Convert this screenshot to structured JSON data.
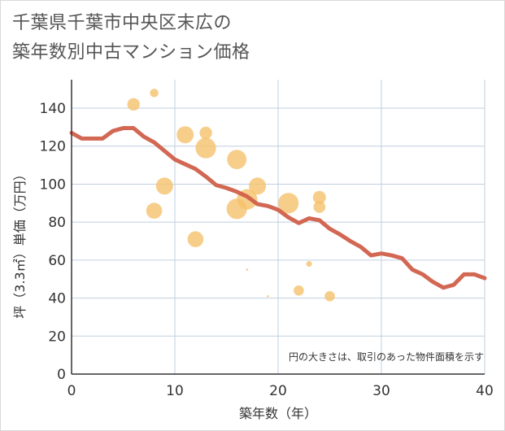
{
  "chart_data": {
    "type": "scatter",
    "title_lines": [
      "千葉県千葉市中央区末広の",
      "築年数別中古マンション価格"
    ],
    "xlabel": "築年数（年）",
    "ylabel": "坪（3.3㎡）単価（万円）",
    "xlim": [
      0,
      40
    ],
    "ylim": [
      0,
      155
    ],
    "x_ticks": [
      0,
      10,
      20,
      30,
      40
    ],
    "y_ticks": [
      0,
      20,
      40,
      60,
      80,
      100,
      120,
      140
    ],
    "grid": true,
    "note": "円の大きさは、取引のあった物件面積を示す",
    "colors": {
      "bubble": "#f5c26b",
      "line": "#d0604a",
      "grid": "#bfcfe0",
      "axis": "#333333"
    },
    "scatter": [
      {
        "x": 6,
        "y": 142,
        "size": 2.2
      },
      {
        "x": 8,
        "y": 148,
        "size": 1.5
      },
      {
        "x": 8,
        "y": 86,
        "size": 2.8
      },
      {
        "x": 9,
        "y": 99,
        "size": 3.0
      },
      {
        "x": 11,
        "y": 126,
        "size": 3.0
      },
      {
        "x": 12,
        "y": 71,
        "size": 2.8
      },
      {
        "x": 13,
        "y": 127,
        "size": 2.2
      },
      {
        "x": 13,
        "y": 119,
        "size": 3.6
      },
      {
        "x": 16,
        "y": 113,
        "size": 3.4
      },
      {
        "x": 16,
        "y": 87,
        "size": 3.6
      },
      {
        "x": 17,
        "y": 92,
        "size": 3.6
      },
      {
        "x": 17,
        "y": 55,
        "size": 0.2
      },
      {
        "x": 18,
        "y": 99,
        "size": 3.0
      },
      {
        "x": 19,
        "y": 41,
        "size": 0.2
      },
      {
        "x": 21,
        "y": 90,
        "size": 3.6
      },
      {
        "x": 22,
        "y": 44,
        "size": 1.8
      },
      {
        "x": 23,
        "y": 58,
        "size": 1.0
      },
      {
        "x": 24,
        "y": 93,
        "size": 2.3
      },
      {
        "x": 24,
        "y": 88,
        "size": 2.1
      },
      {
        "x": 25,
        "y": 41,
        "size": 1.8
      }
    ],
    "line": {
      "x": [
        0,
        1,
        2,
        3,
        4,
        5,
        6,
        7,
        8,
        9,
        10,
        11,
        12,
        13,
        14,
        15,
        16,
        17,
        18,
        19,
        20,
        21,
        22,
        23,
        24,
        25,
        26,
        27,
        28,
        29,
        30,
        31,
        32,
        33,
        34,
        35,
        36,
        37,
        38,
        39,
        40
      ],
      "y": [
        127,
        124,
        124,
        124,
        128,
        129.5,
        129.5,
        125,
        122,
        117.5,
        113,
        110.5,
        108,
        104,
        99.5,
        98,
        96,
        93.5,
        89.5,
        88.5,
        86.5,
        82.5,
        79.5,
        82,
        81,
        76.5,
        73.5,
        70,
        67,
        62.5,
        63.5,
        62.5,
        61,
        55,
        52.5,
        48.5,
        45.5,
        47,
        52.5,
        52.5,
        50.5
      ]
    }
  }
}
